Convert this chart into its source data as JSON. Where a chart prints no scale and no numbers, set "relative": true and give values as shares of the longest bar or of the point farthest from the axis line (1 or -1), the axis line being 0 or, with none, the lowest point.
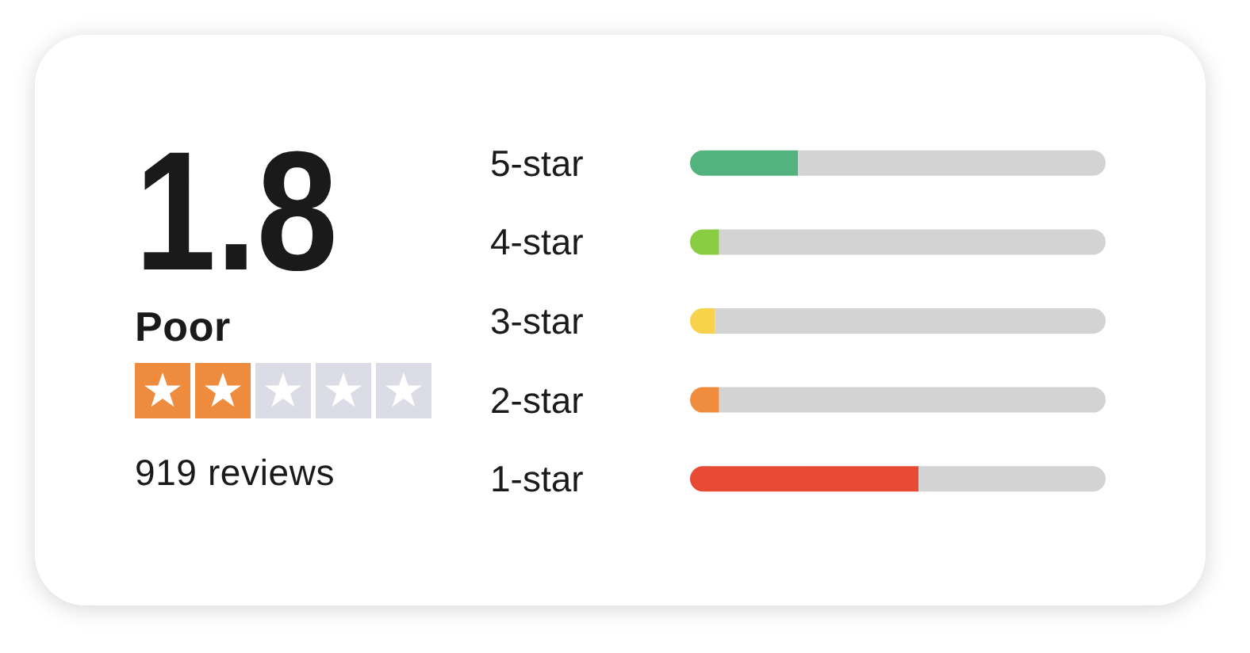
{
  "chart_data": {
    "type": "bar",
    "orientation": "horizontal",
    "stacked": true,
    "relative": true,
    "categories": [
      "5-star",
      "4-star",
      "3-star",
      "2-star",
      "1-star"
    ],
    "series": [
      {
        "colors": [
          "#52b37f",
          "#8acc42",
          "#f7d24a",
          "#ef8c3e",
          "#e94a33"
        ],
        "values": [
          0.26,
          0.07,
          0.06,
          0.07,
          0.55
        ]
      },
      {
        "color": "#d3d3d3",
        "values": [
          0.74,
          0.93,
          0.94,
          0.93,
          0.45
        ]
      }
    ],
    "annotations": [
      "1.8",
      "Poor",
      "919 reviews"
    ]
  }
}
